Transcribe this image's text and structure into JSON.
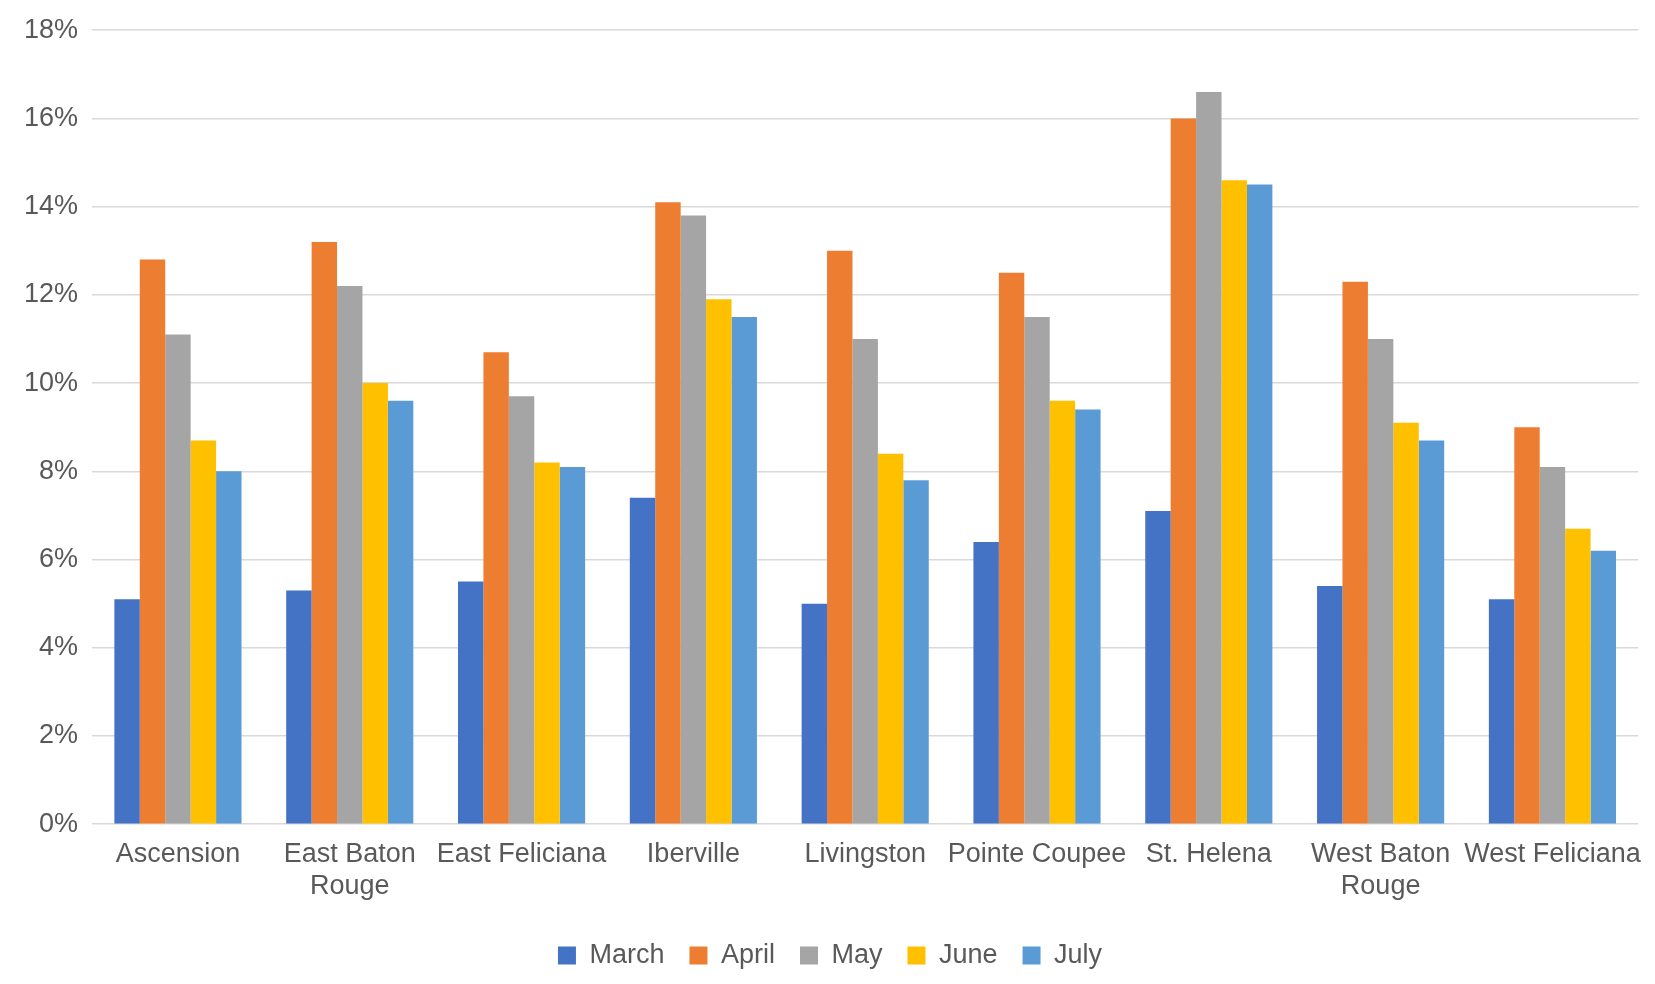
{
  "chart_data": {
    "type": "bar",
    "categories": [
      "Ascension",
      "East Baton Rouge",
      "East Feliciana",
      "Iberville",
      "Livingston",
      "Pointe Coupee",
      "St. Helena",
      "West Baton Rouge",
      "West Feliciana"
    ],
    "series": [
      {
        "name": "March",
        "color": "#4472c4",
        "values": [
          5.1,
          5.3,
          5.5,
          7.4,
          5.0,
          6.4,
          7.1,
          5.4,
          5.1
        ]
      },
      {
        "name": "April",
        "color": "#ed7d31",
        "values": [
          12.8,
          13.2,
          10.7,
          14.1,
          13.0,
          12.5,
          16.0,
          12.3,
          9.0
        ]
      },
      {
        "name": "May",
        "color": "#a5a5a5",
        "values": [
          11.1,
          12.2,
          9.7,
          13.8,
          11.0,
          11.5,
          16.6,
          11.0,
          8.1
        ]
      },
      {
        "name": "June",
        "color": "#ffc000",
        "values": [
          8.7,
          10.0,
          8.2,
          11.9,
          8.4,
          9.6,
          14.6,
          9.1,
          6.7
        ]
      },
      {
        "name": "July",
        "color": "#5b9bd5",
        "values": [
          8.0,
          9.6,
          8.1,
          11.5,
          7.8,
          9.4,
          14.5,
          8.7,
          6.2
        ]
      }
    ],
    "ylim": [
      0,
      18
    ],
    "yticks": [
      {
        "value": 0,
        "label": "0%"
      },
      {
        "value": 2,
        "label": "2%"
      },
      {
        "value": 4,
        "label": "4%"
      },
      {
        "value": 6,
        "label": "6%"
      },
      {
        "value": 8,
        "label": "8%"
      },
      {
        "value": 10,
        "label": "10%"
      },
      {
        "value": 12,
        "label": "12%"
      },
      {
        "value": 14,
        "label": "14%"
      },
      {
        "value": 16,
        "label": "16%"
      },
      {
        "value": 18,
        "label": "18%"
      }
    ],
    "grid": "y",
    "legend": "bottom"
  }
}
